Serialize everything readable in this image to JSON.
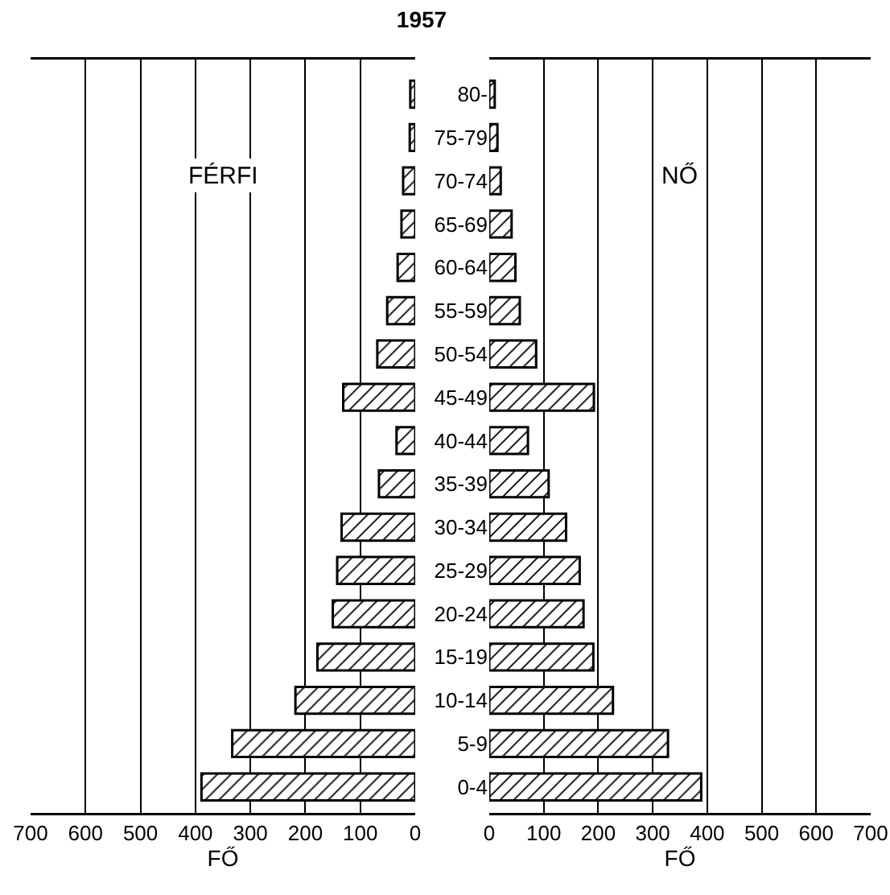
{
  "chart_data": [
    {
      "type": "bar",
      "orientation": "horizontal",
      "title": "1957",
      "xlabel": "FŐ",
      "annotations": [
        "FÉRFI"
      ],
      "categories": [
        null,
        null,
        null,
        null,
        null,
        null,
        null,
        null,
        null,
        null,
        null,
        null,
        null,
        null,
        null,
        null,
        null
      ],
      "values": [
        9,
        10,
        22,
        25,
        32,
        51,
        69,
        131,
        34,
        66,
        134,
        142,
        150,
        178,
        218,
        333,
        389
      ],
      "color": "#000000",
      "xlim": [
        700,
        0
      ],
      "xticks": [
        700,
        600,
        500,
        400,
        300,
        200,
        100,
        0
      ],
      "grid": "x"
    },
    {
      "type": "bar",
      "orientation": "horizontal",
      "xlabel": "FŐ",
      "annotations": [
        "NŐ"
      ],
      "categories": [
        "80-",
        "75-79",
        "70-74",
        "65-69",
        "60-64",
        "55-59",
        "50-54",
        "45-49",
        "40-44",
        "35-39",
        "30-34",
        "25-29",
        "20-24",
        "15-19",
        "10-14",
        "5-9",
        "0-4"
      ],
      "values": [
        10,
        15,
        21,
        41,
        48,
        56,
        86,
        192,
        71,
        109,
        141,
        166,
        173,
        191,
        227,
        328,
        389
      ],
      "color": "#000000",
      "xlim": [
        0,
        700
      ],
      "xticks": [
        0,
        100,
        200,
        300,
        400,
        500,
        600,
        700
      ],
      "grid": "x"
    }
  ]
}
